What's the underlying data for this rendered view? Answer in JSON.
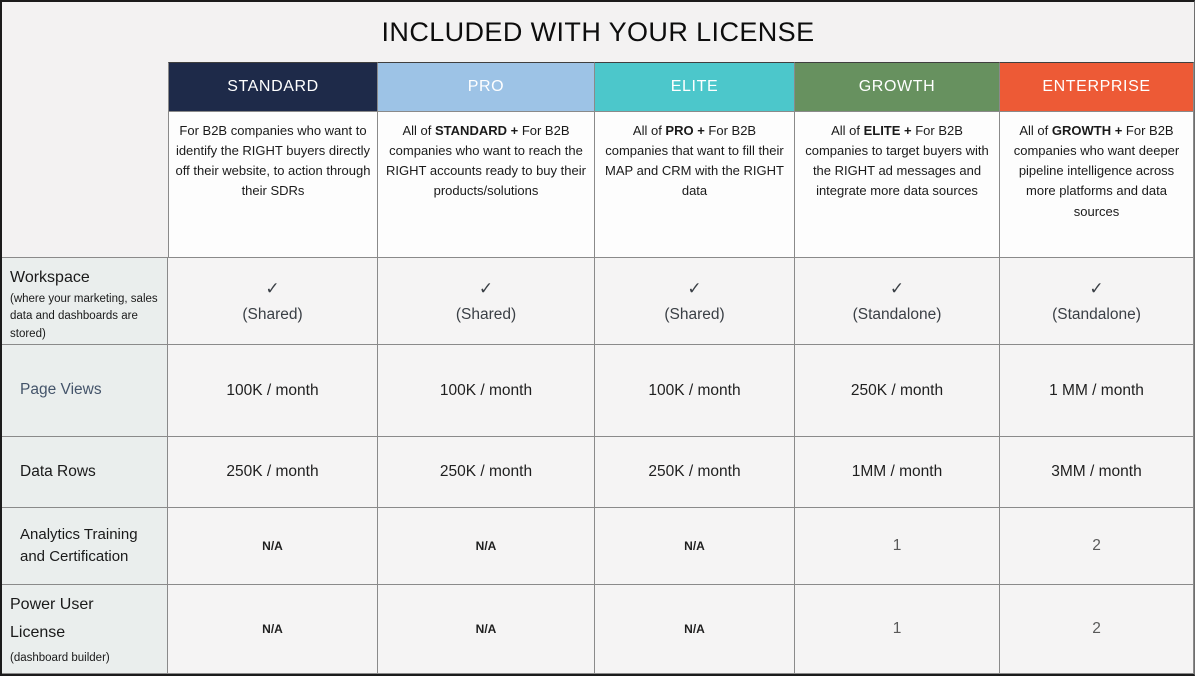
{
  "title": "INCLUDED WITH YOUR LICENSE",
  "symbols": {
    "check": "✓"
  },
  "colors": {
    "page_bg": "#f3f2f2",
    "header_text": "#ffffff",
    "grid_line": "#8a8a8a",
    "frame_border": "#1b1b1b"
  },
  "plans": [
    {
      "name": "STANDARD",
      "color": "#1e2a49",
      "description_parts": [
        {
          "text": "For B2B companies who want to identify the RIGHT buyers directly off their website, to action through their SDRs",
          "bold": false
        }
      ]
    },
    {
      "name": "PRO",
      "color": "#9dc3e6",
      "description_parts": [
        {
          "text": "All of ",
          "bold": false
        },
        {
          "text": "STANDARD +",
          "bold": true
        },
        {
          "text": " For B2B companies who want to reach the RIGHT accounts ready  to buy their products/solutions",
          "bold": false
        }
      ]
    },
    {
      "name": "ELITE",
      "color": "#4cc7cb",
      "description_parts": [
        {
          "text": "All of ",
          "bold": false
        },
        {
          "text": "PRO +",
          "bold": true
        },
        {
          "text": " For B2B companies that want to fill their MAP and CRM with the RIGHT data",
          "bold": false
        }
      ]
    },
    {
      "name": "GROWTH",
      "color": "#67915f",
      "description_parts": [
        {
          "text": "All of ",
          "bold": false
        },
        {
          "text": "ELITE +",
          "bold": true
        },
        {
          "text": " For B2B companies to target buyers with the RIGHT ad messages and integrate more data sources",
          "bold": false
        }
      ]
    },
    {
      "name": "ENTERPRISE",
      "color": "#ed5a36",
      "description_parts": [
        {
          "text": "All of ",
          "bold": false
        },
        {
          "text": "GROWTH +",
          "bold": true
        },
        {
          "text": " For B2B companies who want  deeper pipeline intelligence across more platforms and data sources",
          "bold": false
        }
      ]
    }
  ],
  "features": [
    {
      "label": "Workspace",
      "sublabel": "(where your marketing, sales data  and dashboards are stored)",
      "label_color": "#1a1a1a",
      "values": [
        {
          "note": "(Shared)"
        },
        {
          "note": "(Shared)"
        },
        {
          "note": "(Shared)"
        },
        {
          "note": "(Standalone)"
        },
        {
          "note": "(Standalone)"
        }
      ]
    },
    {
      "label": "Page Views",
      "label_color": "#44546a",
      "values": [
        "100K / month",
        "100K / month",
        "100K / month",
        "250K / month",
        "1 MM / month"
      ]
    },
    {
      "label": "Data Rows",
      "label_color": "#1a1a1a",
      "values": [
        "250K / month",
        "250K / month",
        "250K / month",
        "1MM / month",
        "3MM / month"
      ]
    },
    {
      "label": "Analytics Training and Certification",
      "label_color": "#1a1a1a",
      "values": [
        "N/A",
        "N/A",
        "N/A",
        "1",
        "2"
      ]
    },
    {
      "label": "Power User License",
      "sublabel": "(dashboard builder)",
      "label_color": "#1a1a1a",
      "values": [
        "N/A",
        "N/A",
        "N/A",
        "1",
        "2"
      ]
    }
  ]
}
